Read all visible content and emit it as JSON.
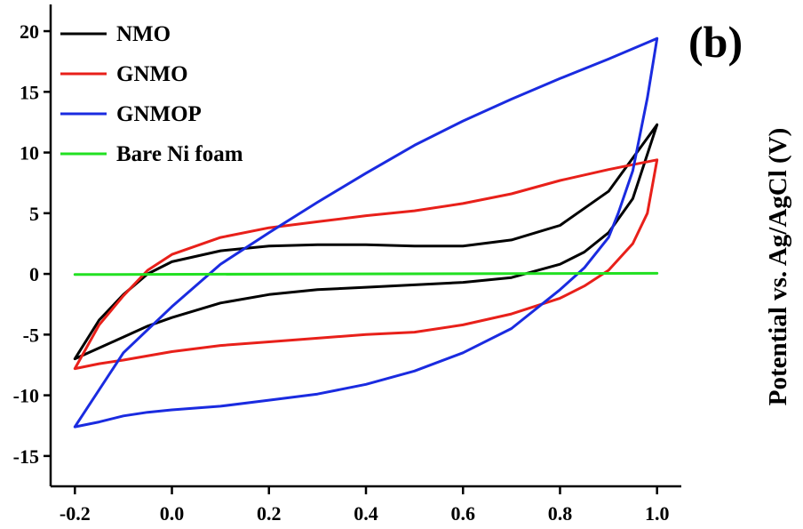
{
  "chart_data": {
    "type": "line",
    "panel_label": "(b)",
    "title": "",
    "xlabel": "",
    "ylabel": "Potential vs. Ag/AgCl (V)",
    "xlim": [
      -0.25,
      1.05
    ],
    "ylim": [
      -17.5,
      22.2
    ],
    "xticks": [
      "-0.2",
      "0.0",
      "0.2",
      "0.4",
      "0.6",
      "0.8",
      "1.0"
    ],
    "xtick_values": [
      -0.2,
      0.0,
      0.2,
      0.4,
      0.6,
      0.8,
      1.0
    ],
    "yticks": [
      "20",
      "15",
      "10",
      "5",
      "0",
      "-5",
      "-10",
      "-15"
    ],
    "ytick_values": [
      20,
      15,
      10,
      5,
      0,
      -5,
      -10,
      -15
    ],
    "grid": false,
    "legend_position": "top-left",
    "series": [
      {
        "name": "NMO",
        "color": "#000000",
        "x": [
          -0.2,
          -0.15,
          -0.1,
          -0.05,
          0.0,
          0.1,
          0.2,
          0.3,
          0.4,
          0.5,
          0.6,
          0.7,
          0.8,
          0.9,
          1.0,
          0.95,
          0.9,
          0.85,
          0.8,
          0.7,
          0.6,
          0.5,
          0.4,
          0.3,
          0.2,
          0.1,
          0.0,
          -0.05,
          -0.1,
          -0.15,
          -0.2
        ],
        "y": [
          -7.0,
          -3.8,
          -1.7,
          0.0,
          1.0,
          1.9,
          2.3,
          2.4,
          2.4,
          2.3,
          2.3,
          2.8,
          4.0,
          6.8,
          12.3,
          6.2,
          3.4,
          1.8,
          0.8,
          -0.3,
          -0.7,
          -0.9,
          -1.1,
          -1.3,
          -1.7,
          -2.4,
          -3.6,
          -4.3,
          -5.2,
          -6.1,
          -7.0
        ]
      },
      {
        "name": "GNMO",
        "color": "#e8201a",
        "x": [
          -0.2,
          -0.15,
          -0.1,
          -0.05,
          0.0,
          0.1,
          0.2,
          0.3,
          0.4,
          0.5,
          0.6,
          0.7,
          0.8,
          0.9,
          0.95,
          1.0,
          0.98,
          0.95,
          0.9,
          0.85,
          0.8,
          0.7,
          0.6,
          0.5,
          0.4,
          0.3,
          0.2,
          0.1,
          0.0,
          -0.1,
          -0.15,
          -0.2
        ],
        "y": [
          -7.8,
          -4.2,
          -1.8,
          0.3,
          1.6,
          3.0,
          3.8,
          4.3,
          4.8,
          5.2,
          5.8,
          6.6,
          7.7,
          8.6,
          9.0,
          9.4,
          5.0,
          2.5,
          0.3,
          -1.0,
          -2.0,
          -3.3,
          -4.2,
          -4.8,
          -5.0,
          -5.3,
          -5.6,
          -5.9,
          -6.4,
          -7.1,
          -7.4,
          -7.8
        ]
      },
      {
        "name": "GNMOP",
        "color": "#1a2be0",
        "x": [
          -0.2,
          -0.1,
          0.0,
          0.1,
          0.2,
          0.3,
          0.4,
          0.5,
          0.6,
          0.7,
          0.8,
          0.9,
          1.0,
          0.98,
          0.95,
          0.92,
          0.9,
          0.85,
          0.8,
          0.7,
          0.6,
          0.5,
          0.4,
          0.3,
          0.2,
          0.1,
          0.0,
          -0.05,
          -0.1,
          -0.15,
          -0.2
        ],
        "y": [
          -12.6,
          -6.5,
          -2.7,
          0.8,
          3.4,
          5.9,
          8.3,
          10.6,
          12.6,
          14.4,
          16.1,
          17.7,
          19.4,
          14.5,
          8.5,
          5.0,
          3.0,
          0.5,
          -1.3,
          -4.5,
          -6.5,
          -8.0,
          -9.1,
          -9.9,
          -10.4,
          -10.9,
          -11.2,
          -11.4,
          -11.7,
          -12.2,
          -12.6
        ]
      },
      {
        "name": "Bare Ni foam",
        "color": "#22e022",
        "x": [
          -0.2,
          1.0
        ],
        "y": [
          -0.05,
          0.05
        ]
      }
    ]
  }
}
